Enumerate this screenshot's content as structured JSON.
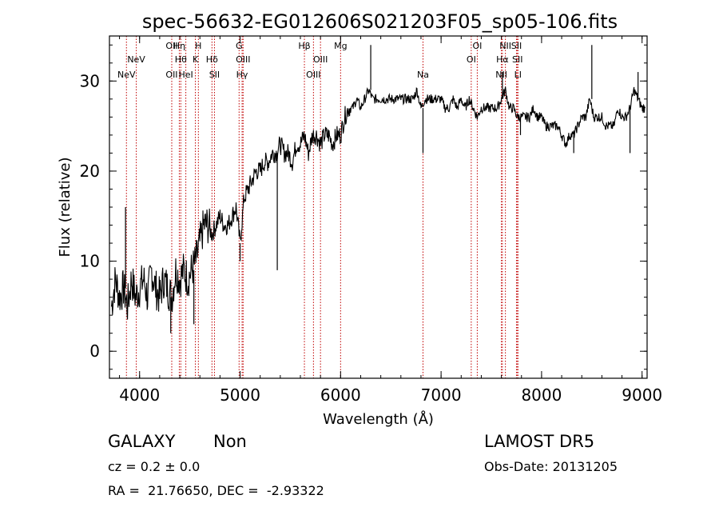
{
  "chart_data": {
    "type": "line",
    "title": "spec-56632-EG012606S021203F05_sp05-106.fits",
    "xlabel": "Wavelength (Å)",
    "ylabel": "Flux (relative)",
    "xlim": [
      3700,
      9050
    ],
    "ylim": [
      -3,
      35
    ],
    "x_ticks": [
      {
        "value": 4000,
        "label": "4000"
      },
      {
        "value": 5000,
        "label": "5000"
      },
      {
        "value": 6000,
        "label": "6000"
      },
      {
        "value": 7000,
        "label": "7000"
      },
      {
        "value": 8000,
        "label": "8000"
      },
      {
        "value": 9000,
        "label": "9000"
      }
    ],
    "y_ticks": [
      {
        "value": 0,
        "label": "0"
      },
      {
        "value": 10,
        "label": "10"
      },
      {
        "value": 20,
        "label": "20"
      },
      {
        "value": 30,
        "label": "30"
      }
    ],
    "lines": [
      {
        "wavelength": 3869,
        "label": "NeV",
        "row": 2
      },
      {
        "wavelength": 3967,
        "label": "NeV",
        "row": 1
      },
      {
        "wavelength": 4320,
        "label": "OII",
        "row": 0
      },
      {
        "wavelength": 4320,
        "label": "OII",
        "row": 2
      },
      {
        "wavelength": 4395,
        "label": "Hη",
        "row": 0
      },
      {
        "wavelength": 4410,
        "label": "Hθ",
        "row": 1
      },
      {
        "wavelength": 4460,
        "label": "HeI",
        "row": 2
      },
      {
        "wavelength": 4555,
        "label": "K",
        "row": 1
      },
      {
        "wavelength": 4585,
        "label": "H",
        "row": 0
      },
      {
        "wavelength": 4720,
        "label": "Hδ",
        "row": 1
      },
      {
        "wavelength": 4745,
        "label": "SII",
        "row": 2
      },
      {
        "wavelength": 4990,
        "label": "G",
        "row": 0
      },
      {
        "wavelength": 5030,
        "label": "OIII",
        "row": 1
      },
      {
        "wavelength": 5020,
        "label": "Hγ",
        "row": 2
      },
      {
        "wavelength": 5640,
        "label": "Hβ",
        "row": 0
      },
      {
        "wavelength": 5730,
        "label": "OIII",
        "row": 2
      },
      {
        "wavelength": 5800,
        "label": "OIII",
        "row": 1
      },
      {
        "wavelength": 6000,
        "label": "Mg",
        "row": 0
      },
      {
        "wavelength": 6820,
        "label": "Na",
        "row": 2
      },
      {
        "wavelength": 7300,
        "label": "OI",
        "row": 1
      },
      {
        "wavelength": 7360,
        "label": "OI",
        "row": 0
      },
      {
        "wavelength": 7600,
        "label": "NII",
        "row": 2
      },
      {
        "wavelength": 7610,
        "label": "Hα",
        "row": 1
      },
      {
        "wavelength": 7640,
        "label": "NII",
        "row": 0
      },
      {
        "wavelength": 7750,
        "label": "SII",
        "row": 0
      },
      {
        "wavelength": 7760,
        "label": "SII",
        "row": 1
      },
      {
        "wavelength": 7765,
        "label": "LI",
        "row": 2
      }
    ],
    "series": [
      {
        "x": [
          3720,
          3760,
          3800,
          3840,
          3880,
          3920,
          3960,
          4000,
          4040,
          4080,
          4120,
          4160,
          4200,
          4240,
          4280,
          4320,
          4360,
          4400,
          4440,
          4480,
          4520,
          4560,
          4600,
          4640,
          4680,
          4720,
          4760,
          4800,
          4840,
          4880,
          4920,
          4960,
          5000,
          5040,
          5080,
          5120,
          5160,
          5200,
          5240,
          5280,
          5320,
          5360,
          5400,
          5440,
          5480,
          5520,
          5560,
          5600,
          5640,
          5680,
          5720,
          5760,
          5800,
          5840,
          5880,
          5920,
          5960,
          6000,
          6040,
          6080,
          6120,
          6160,
          6200,
          6240,
          6280,
          6320,
          6360,
          6400,
          6440,
          6480,
          6520,
          6560,
          6600,
          6640,
          6680,
          6720,
          6760,
          6800,
          6840,
          6880,
          6920,
          6960,
          7000,
          7040,
          7080,
          7120,
          7160,
          7200,
          7240,
          7280,
          7320,
          7360,
          7400,
          7440,
          7480,
          7520,
          7560,
          7600,
          7640,
          7680,
          7720,
          7760,
          7800,
          7840,
          7880,
          7920,
          7960,
          8000,
          8040,
          8080,
          8120,
          8160,
          8200,
          8240,
          8280,
          8320,
          8360,
          8400,
          8440,
          8480,
          8520,
          8560,
          8600,
          8640,
          8680,
          8720,
          8760,
          8800,
          8840,
          8880,
          8920,
          8960,
          9000,
          9030
        ],
        "y": [
          5,
          8,
          6,
          7,
          5,
          8,
          6,
          7,
          8,
          6,
          9,
          7,
          6,
          8,
          7,
          6,
          9,
          8,
          9,
          8,
          9,
          10,
          12,
          14,
          14,
          13,
          14,
          15,
          14,
          14,
          15,
          16,
          12,
          17,
          18,
          19,
          20,
          20,
          21,
          21,
          22,
          22,
          23,
          22,
          22,
          21,
          23,
          23,
          24,
          22,
          24,
          24,
          23,
          24,
          24,
          23,
          24,
          24,
          26,
          27,
          27,
          28,
          27,
          28,
          29,
          28,
          28,
          28,
          28,
          28,
          28,
          28,
          28,
          28,
          28,
          28,
          29,
          27,
          28,
          28,
          28,
          28,
          28,
          27,
          27,
          28,
          27,
          28,
          27,
          28,
          27,
          26,
          27,
          27,
          27,
          27,
          27,
          28,
          29,
          27,
          27,
          26,
          26,
          26,
          26,
          27,
          26,
          26,
          25,
          25,
          25,
          25,
          24,
          23,
          24,
          24,
          25,
          26,
          26,
          28,
          26,
          26,
          26,
          25,
          25,
          25,
          27,
          26,
          26,
          27,
          29,
          28,
          27,
          27
        ]
      }
    ],
    "spikes": [
      {
        "x": 3860,
        "y": 16
      },
      {
        "x": 4310,
        "y": 2
      },
      {
        "x": 4540,
        "y": 3
      },
      {
        "x": 5000,
        "y": 10
      },
      {
        "x": 5370,
        "y": 9
      },
      {
        "x": 6300,
        "y": 34
      },
      {
        "x": 6820,
        "y": 22
      },
      {
        "x": 7610,
        "y": 31
      },
      {
        "x": 7790,
        "y": 24
      },
      {
        "x": 8320,
        "y": 22
      },
      {
        "x": 8500,
        "y": 34
      },
      {
        "x": 8880,
        "y": 22
      },
      {
        "x": 8960,
        "y": 31
      }
    ]
  },
  "footer": {
    "class_label": "GALAXY",
    "subclass_label": "Non",
    "survey": "LAMOST DR5",
    "cz": "cz = 0.2 ± 0.0",
    "obs_date": "Obs-Date: 20131205",
    "coords": "RA =  21.76650, DEC =  -2.93322"
  }
}
